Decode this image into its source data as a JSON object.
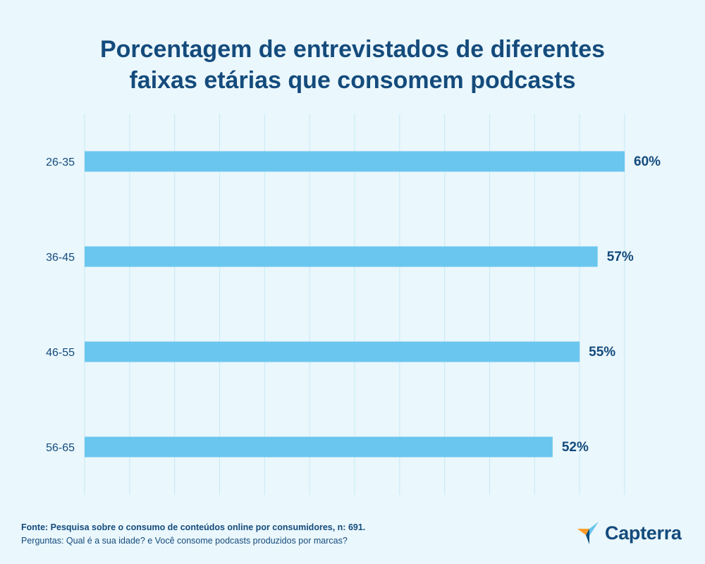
{
  "chart_data": {
    "type": "bar",
    "orientation": "horizontal",
    "title_lines": [
      "Porcentagem de entrevistados de diferentes",
      "faixas etárias que consomem podcasts"
    ],
    "categories": [
      "26-35",
      "36-45",
      "46-55",
      "56-65"
    ],
    "values": [
      60,
      57,
      55,
      52
    ],
    "value_labels": [
      "60%",
      "57%",
      "55%",
      "52%"
    ],
    "xlim": [
      0,
      60
    ],
    "grid": true,
    "xlabel": "",
    "ylabel": "",
    "colors": {
      "bar": "#6ac6ee",
      "grid": "#c7ebf6",
      "text": "#144b7c",
      "label": "#144b7c",
      "background": "#eaf7fc"
    }
  },
  "footer": {
    "source": "Fonte: Pesquisa sobre o consumo de conteúdos online por consumidores, n: 691.",
    "questions": "Perguntas: Qual é a sua idade? e Você consome podcasts produzidos por marcas?"
  },
  "brand": {
    "name": "Capterra",
    "icon": "capterra-logo-icon",
    "colors": {
      "orange": "#ff9d28",
      "blue": "#68c5ed",
      "navy": "#044d80"
    }
  }
}
